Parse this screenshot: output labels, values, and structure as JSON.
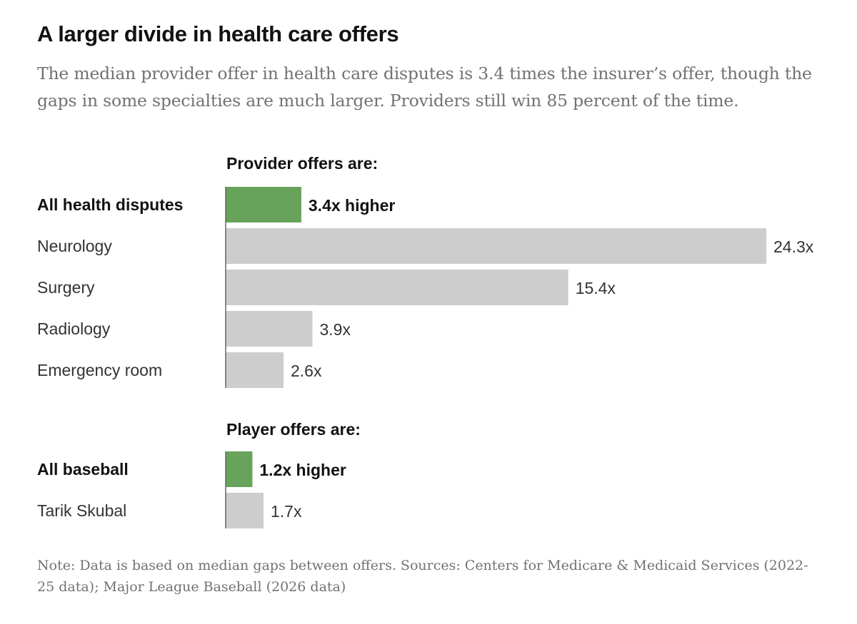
{
  "title": "A larger divide in health care offers",
  "subtitle": "The median provider offer in health care disputes is 3.4 times the insurer’s offer, though the gaps in some specialties are much larger. Providers still win 85 percent of the time.",
  "note": "Note: Data is based on median gaps between offers. Sources: Centers for Medicare & Medicaid Services (2022-25 data); Major League Baseball (2026 data)",
  "colors": {
    "highlight": "#67a35a",
    "neutral": "#cdcdcd",
    "axis": "#666666",
    "text": "#121212",
    "muted": "#333333"
  },
  "chart_data": [
    {
      "type": "bar",
      "orientation": "horizontal",
      "section_label": "Provider offers are:",
      "categories": [
        "All health disputes",
        "Neurology",
        "Surgery",
        "Radiology",
        "Emergency room"
      ],
      "values": [
        3.4,
        24.3,
        15.4,
        3.9,
        2.6
      ],
      "value_labels": [
        "3.4x higher",
        "24.3x",
        "15.4x",
        "3.9x",
        "2.6x"
      ],
      "highlight": [
        true,
        false,
        false,
        false,
        false
      ],
      "xlim": [
        0,
        24.3
      ],
      "grid": false
    },
    {
      "type": "bar",
      "orientation": "horizontal",
      "section_label": "Player offers are:",
      "categories": [
        "All baseball",
        "Tarik Skubal"
      ],
      "values": [
        1.2,
        1.7
      ],
      "value_labels": [
        "1.2x higher",
        "1.7x"
      ],
      "highlight": [
        true,
        false
      ],
      "xlim": [
        0,
        24.3
      ],
      "grid": false
    }
  ]
}
